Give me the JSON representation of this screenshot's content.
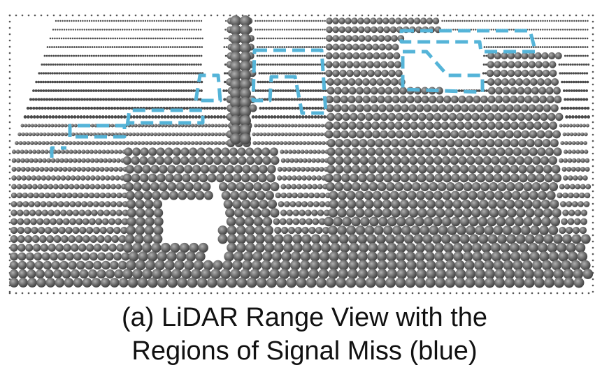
{
  "caption": {
    "line1": "(a) LiDAR Range View with the",
    "line2": "Regions of Signal Miss (blue)"
  },
  "colors": {
    "point": "#6e6e6e",
    "point_dark": "#4a4a4a",
    "signal_miss_outline": "#55b4d8",
    "frame_dots": "#555555"
  },
  "icons": [
    "lidar-point-sphere-icon"
  ]
}
